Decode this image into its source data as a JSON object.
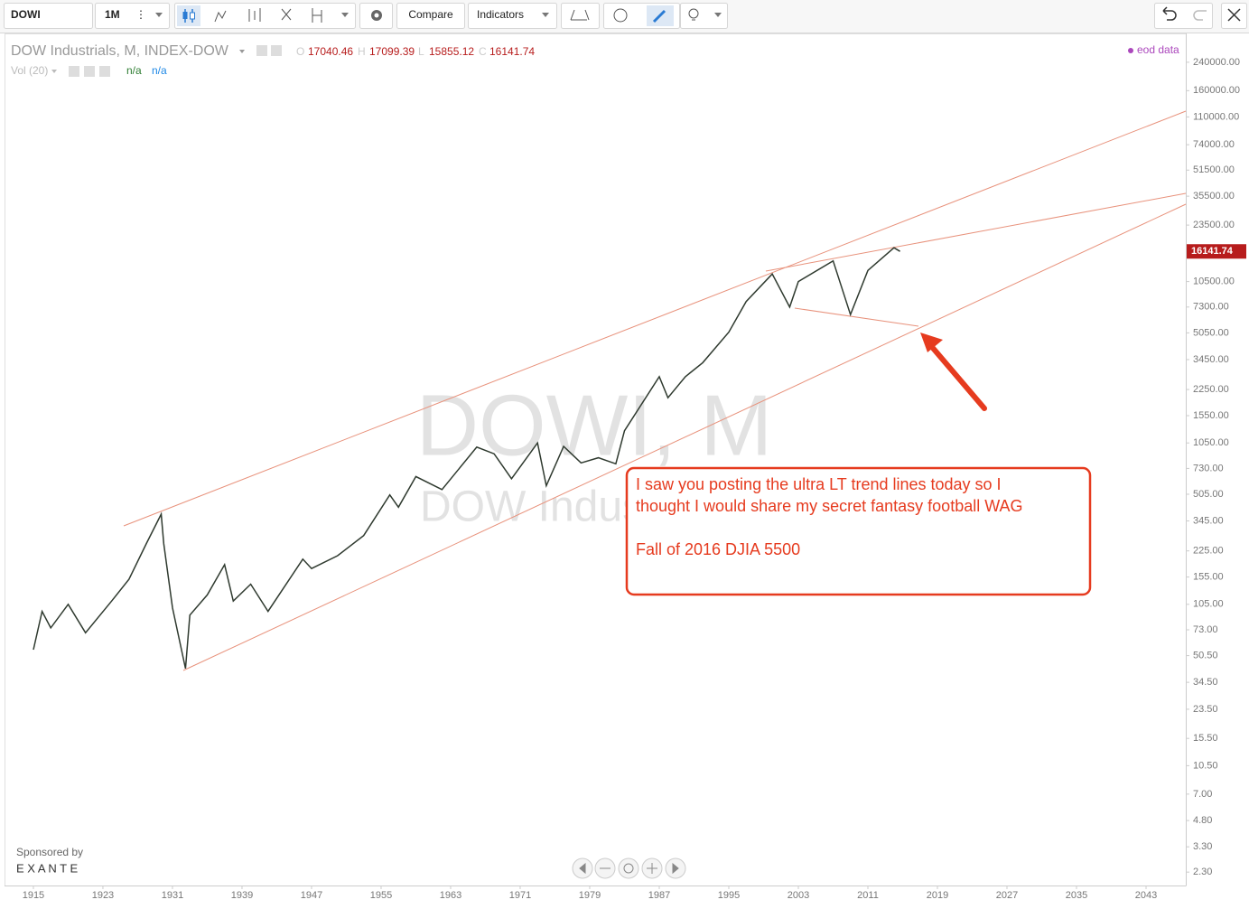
{
  "toolbar": {
    "symbol": "DOWI",
    "interval": "1M",
    "compare": "Compare",
    "indicators": "Indicators"
  },
  "legend": {
    "title": "DOW Industrials, M, INDEX-DOW",
    "o_label": "O",
    "open": 17040.46,
    "h_label": "H",
    "high": 17099.39,
    "l_label": "L",
    "low": 15855.12,
    "c_label": "C",
    "close": 16141.74,
    "volume": "Vol (20)",
    "vol_value_1": "n/a",
    "vol_value_2": "n/a",
    "source": "eod data"
  },
  "watermark": {
    "line1": "DOWI, M",
    "line2": "DOW Industrials"
  },
  "annotation": {
    "line1": "I saw you posting the ultra LT trend lines today so I",
    "line2": "thought I would share my secret fantasy football WAG",
    "line3": "Fall of 2016 DJIA 5500"
  },
  "sponsor": {
    "label": "Sponsored by",
    "name": "E X A N T E"
  },
  "chart_data": {
    "type": "line",
    "log_scale": true,
    "color": "#2f3a2f",
    "last_price": 16141.74,
    "last_price_color": "#b71c1c",
    "x": [
      1915,
      1916,
      1917,
      1919,
      1921,
      1924,
      1926,
      1928,
      1929.7,
      1930,
      1931,
      1932.5,
      1933,
      1935,
      1937,
      1938,
      1940,
      1942,
      1946,
      1947,
      1950,
      1953,
      1956,
      1957,
      1959,
      1962,
      1966,
      1968,
      1970,
      1973,
      1974,
      1976,
      1978,
      1980,
      1982,
      1983,
      1987,
      1988,
      1990,
      1992,
      1995,
      1997,
      2000,
      2002,
      2003,
      2007,
      2009,
      2011,
      2014,
      2014.7
    ],
    "values": [
      55,
      95,
      75,
      105,
      70,
      110,
      150,
      250,
      380,
      250,
      100,
      42,
      90,
      120,
      185,
      110,
      140,
      95,
      200,
      175,
      210,
      280,
      500,
      420,
      650,
      540,
      990,
      900,
      630,
      1050,
      570,
      1000,
      790,
      850,
      780,
      1250,
      2700,
      2000,
      2700,
      3300,
      5100,
      7900,
      11700,
      7300,
      10500,
      14100,
      6550,
      12300,
      17000,
      16141.74
    ],
    "xlim": [
      1911.68,
      2047.57
    ],
    "xticks": [
      1915,
      1923,
      1931,
      1939,
      1947,
      1955,
      1963,
      1971,
      1979,
      1987,
      1995,
      2003,
      2011,
      2019,
      2027,
      2035,
      2043
    ],
    "ylim": [
      1.9,
      362000
    ],
    "yticks": [
      {
        "value": 240000,
        "label": "240000.00"
      },
      {
        "value": 160000,
        "label": "160000.00"
      },
      {
        "value": 110000,
        "label": "110000.00"
      },
      {
        "value": 74000,
        "label": "74000.00"
      },
      {
        "value": 51500,
        "label": "51500.00"
      },
      {
        "value": 35500,
        "label": "35500.00"
      },
      {
        "value": 23500,
        "label": "23500.00"
      },
      {
        "value": 10500,
        "label": "10500.00"
      },
      {
        "value": 7300,
        "label": "7300.00"
      },
      {
        "value": 5050,
        "label": "5050.00"
      },
      {
        "value": 3450,
        "label": "3450.00"
      },
      {
        "value": 2250,
        "label": "2250.00"
      },
      {
        "value": 1550,
        "label": "1550.00"
      },
      {
        "value": 1050,
        "label": "1050.00"
      },
      {
        "value": 730,
        "label": "730.00"
      },
      {
        "value": 505,
        "label": "505.00"
      },
      {
        "value": 345,
        "label": "345.00"
      },
      {
        "value": 225,
        "label": "225.00"
      },
      {
        "value": 155,
        "label": "155.00"
      },
      {
        "value": 105,
        "label": "105.00"
      },
      {
        "value": 73,
        "label": "73.00"
      },
      {
        "value": 50.5,
        "label": "50.50"
      },
      {
        "value": 34.5,
        "label": "34.50"
      },
      {
        "value": 23.5,
        "label": "23.50"
      },
      {
        "value": 15.5,
        "label": "15.50"
      },
      {
        "value": 10.5,
        "label": "10.50"
      },
      {
        "value": 7,
        "label": "7.00"
      },
      {
        "value": 4.8,
        "label": "4.80"
      },
      {
        "value": 3.3,
        "label": "3.30"
      },
      {
        "value": 2.3,
        "label": "2.30"
      }
    ]
  }
}
